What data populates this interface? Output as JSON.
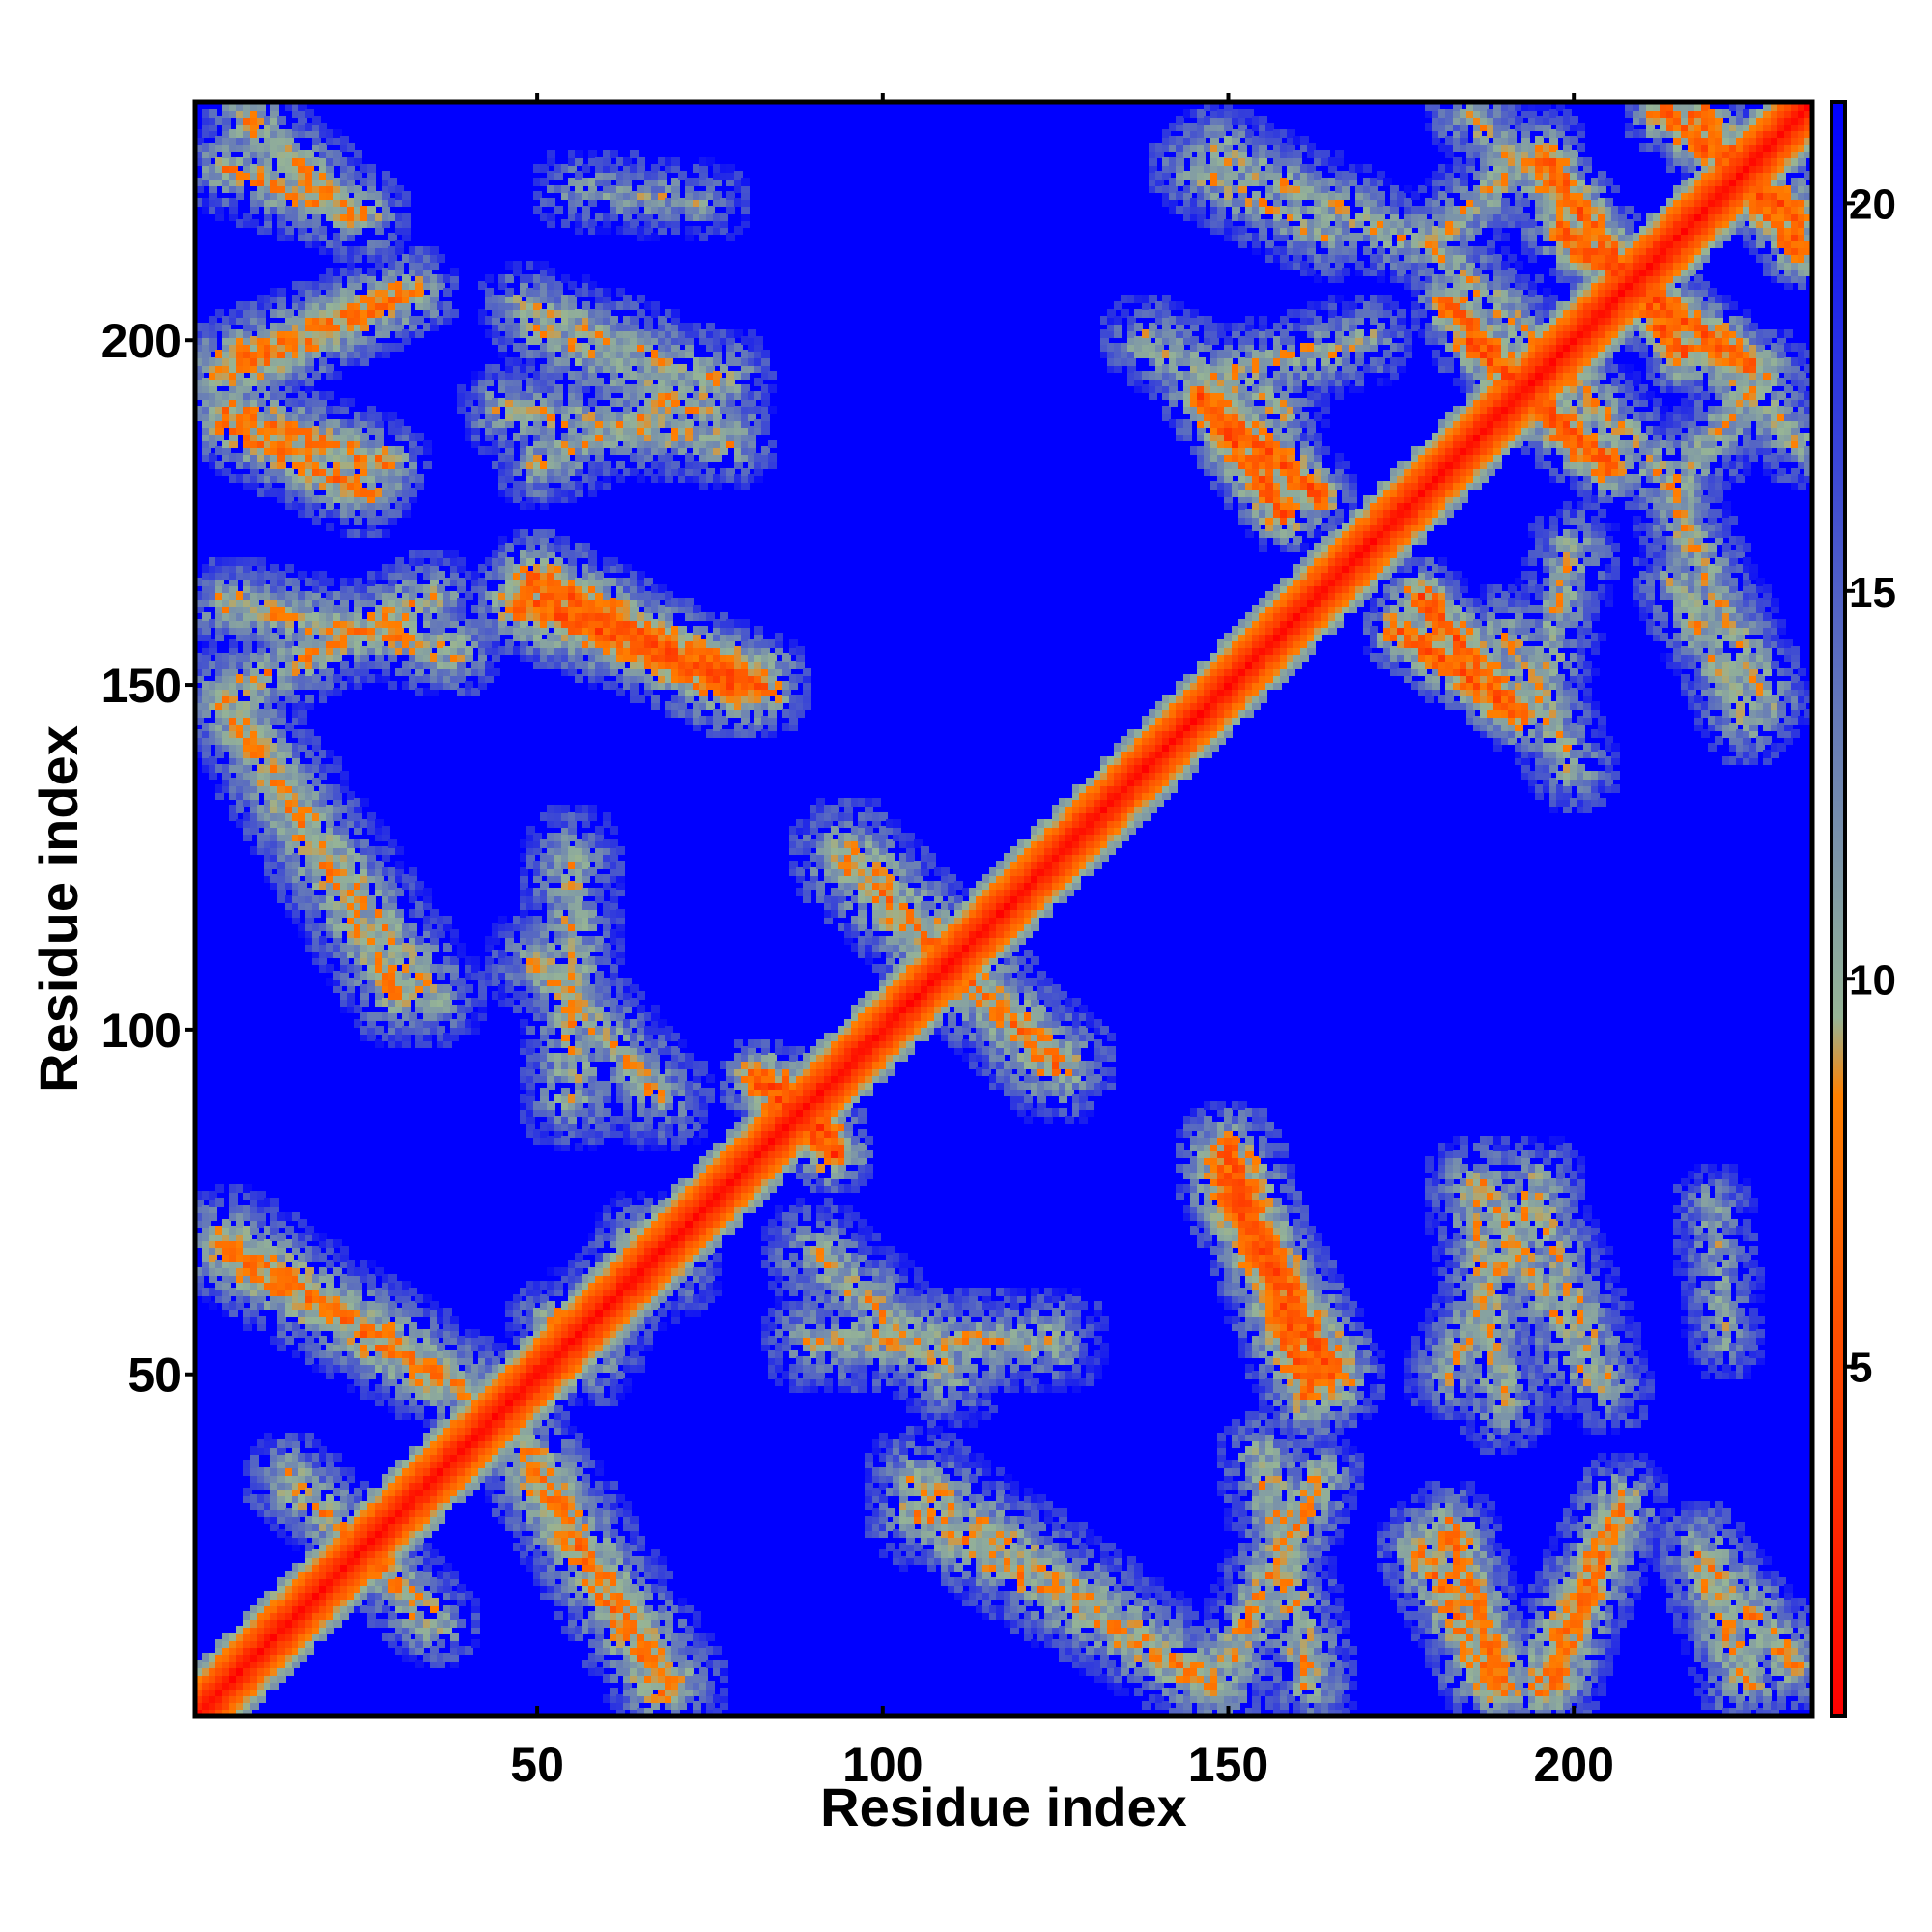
{
  "chart_data": {
    "type": "heatmap",
    "title": "",
    "xlabel": "Residue index",
    "ylabel": "Residue index",
    "xlim": [
      0.5,
      234.5
    ],
    "ylim": [
      0.5,
      234.5
    ],
    "x_ticks": [
      50,
      100,
      150,
      200
    ],
    "y_ticks": [
      50,
      100,
      150,
      200
    ],
    "n_residues": 234,
    "colorbar": {
      "range": [
        0.5,
        21.3
      ],
      "ticks": [
        5,
        10,
        15,
        20
      ],
      "colors": [
        "#ff0000",
        "#ff8000",
        "#96b496",
        "#0000ff"
      ],
      "stops": [
        0.5,
        8.5,
        9.5,
        21.3
      ]
    },
    "background_value": 21,
    "diagonal_band": {
      "min_value": 1,
      "half_width": 3,
      "slope": 1.5
    },
    "contact_segments": [
      {
        "from": [
          5,
          225
        ],
        "to": [
          25,
          218
        ],
        "half_width": 4,
        "min_value": 8
      },
      {
        "from": [
          5,
          197
        ],
        "to": [
          32,
          207
        ],
        "half_width": 4,
        "min_value": 7
      },
      {
        "from": [
          5,
          190
        ],
        "to": [
          28,
          182
        ],
        "half_width": 4,
        "min_value": 7
      },
      {
        "from": [
          8,
          150
        ],
        "to": [
          35,
          163
        ],
        "half_width": 4,
        "min_value": 8
      },
      {
        "from": [
          5,
          148
        ],
        "to": [
          35,
          105
        ],
        "half_width": 5,
        "min_value": 9
      },
      {
        "from": [
          5,
          70
        ],
        "to": [
          40,
          48
        ],
        "half_width": 5,
        "min_value": 8
      },
      {
        "from": [
          20,
          30
        ],
        "to": [
          35,
          14
        ],
        "half_width": 4,
        "min_value": 8
      },
      {
        "from": [
          50,
          35
        ],
        "to": [
          68,
          5
        ],
        "half_width": 5,
        "min_value": 7
      },
      {
        "from": [
          48,
          162
        ],
        "to": [
          82,
          150
        ],
        "half_width": 5,
        "min_value": 5
      },
      {
        "from": [
          50,
          202
        ],
        "to": [
          78,
          187
        ],
        "half_width": 4,
        "min_value": 9
      },
      {
        "from": [
          50,
          182
        ],
        "to": [
          78,
          195
        ],
        "half_width": 4,
        "min_value": 9
      },
      {
        "from": [
          55,
          125
        ],
        "to": [
          55,
          90
        ],
        "half_width": 5,
        "min_value": 9
      },
      {
        "from": [
          52,
          58
        ],
        "to": [
          70,
          65
        ],
        "half_width": 4,
        "min_value": 9
      },
      {
        "from": [
          85,
          92
        ],
        "to": [
          93,
          82
        ],
        "half_width": 3,
        "min_value": 4
      },
      {
        "from": [
          100,
          120
        ],
        "to": [
          125,
          95
        ],
        "half_width": 6,
        "min_value": 7
      },
      {
        "from": [
          90,
          68
        ],
        "to": [
          110,
          50
        ],
        "half_width": 5,
        "min_value": 9
      },
      {
        "from": [
          105,
          30
        ],
        "to": [
          148,
          5
        ],
        "half_width": 5,
        "min_value": 8
      },
      {
        "from": [
          150,
          78
        ],
        "to": [
          165,
          50
        ],
        "half_width": 5,
        "min_value": 5
      },
      {
        "from": [
          155,
          38
        ],
        "to": [
          162,
          5
        ],
        "half_width": 4,
        "min_value": 8
      },
      {
        "from": [
          148,
          228
        ],
        "to": [
          175,
          215
        ],
        "half_width": 4,
        "min_value": 9
      },
      {
        "from": [
          148,
          195
        ],
        "to": [
          170,
          200
        ],
        "half_width": 4,
        "min_value": 9
      },
      {
        "from": [
          148,
          190
        ],
        "to": [
          163,
          178
        ],
        "half_width": 3,
        "min_value": 5
      },
      {
        "from": [
          175,
          158
        ],
        "to": [
          192,
          146
        ],
        "half_width": 3,
        "min_value": 5
      },
      {
        "from": [
          190,
          158
        ],
        "to": [
          200,
          138
        ],
        "half_width": 4,
        "min_value": 9
      },
      {
        "from": [
          182,
          205
        ],
        "to": [
          200,
          185
        ],
        "half_width": 3,
        "min_value": 5
      },
      {
        "from": [
          195,
          228
        ],
        "to": [
          180,
          215
        ],
        "half_width": 4,
        "min_value": 9
      },
      {
        "from": [
          195,
          200
        ],
        "to": [
          215,
          178
        ],
        "half_width": 4,
        "min_value": 9
      },
      {
        "from": [
          196,
          226
        ],
        "to": [
          216,
          198
        ],
        "half_width": 3,
        "min_value": 5
      },
      {
        "from": [
          213,
          233
        ],
        "to": [
          233,
          218
        ],
        "half_width": 3,
        "min_value": 5
      },
      {
        "from": [
          220,
          198
        ],
        "to": [
          233,
          185
        ],
        "half_width": 4,
        "min_value": 9
      },
      {
        "from": [
          215,
          165
        ],
        "to": [
          225,
          145
        ],
        "half_width": 4,
        "min_value": 9
      },
      {
        "from": [
          185,
          78
        ],
        "to": [
          190,
          45
        ],
        "half_width": 4,
        "min_value": 9
      },
      {
        "from": [
          195,
          75
        ],
        "to": [
          205,
          48
        ],
        "half_width": 4,
        "min_value": 9
      },
      {
        "from": [
          178,
          25
        ],
        "to": [
          188,
          5
        ],
        "half_width": 4,
        "min_value": 7
      },
      {
        "from": [
          205,
          27
        ],
        "to": [
          195,
          5
        ],
        "half_width": 4,
        "min_value": 7
      },
      {
        "from": [
          220,
          22
        ],
        "to": [
          232,
          8
        ],
        "half_width": 4,
        "min_value": 8
      },
      {
        "from": [
          220,
          75
        ],
        "to": [
          222,
          55
        ],
        "half_width": 3,
        "min_value": 10
      }
    ]
  }
}
